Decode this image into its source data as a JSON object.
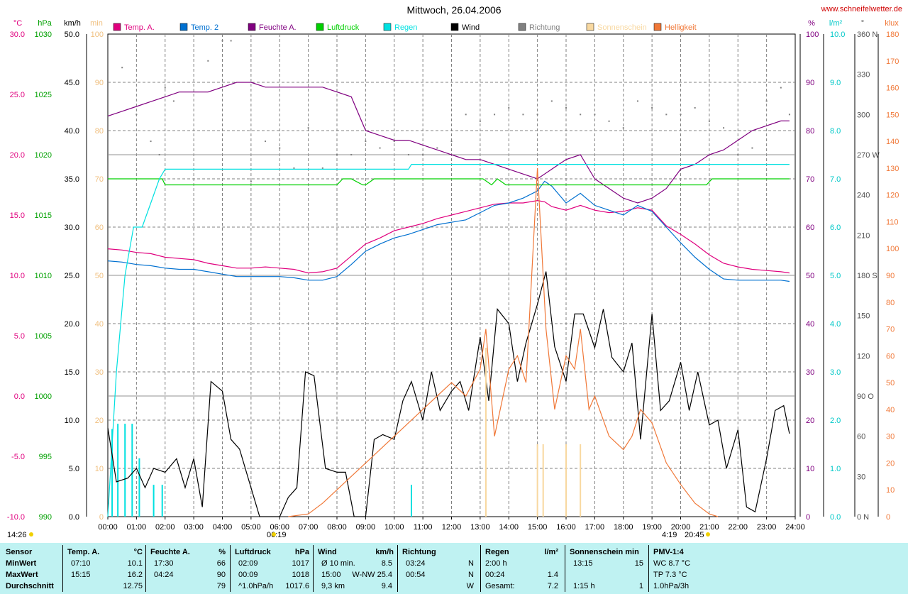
{
  "header": {
    "title": "Mittwoch, 26.04.2006",
    "site": "www.schneifelwetter.de"
  },
  "axis_units": {
    "temp": "°C",
    "pressure": "hPa",
    "speed": "km/h",
    "minutes": "min",
    "humidity": "%",
    "rain": "l/m²",
    "direction": "°",
    "brightness": "klux"
  },
  "legend": [
    {
      "label": "Temp. A.",
      "color": "#e0007e"
    },
    {
      "label": "Temp. 2",
      "color": "#0070d0"
    },
    {
      "label": "Feuchte A.",
      "color": "#800080"
    },
    {
      "label": "Luftdruck",
      "color": "#00d000"
    },
    {
      "label": "Regen",
      "color": "#00e0e0"
    },
    {
      "label": "Wind",
      "color": "#000000"
    },
    {
      "label": "Richtung",
      "color": "#808080"
    },
    {
      "label": "Sonnenschein",
      "color": "#f8d8a0"
    },
    {
      "label": "Helligkeit",
      "color": "#f07838"
    }
  ],
  "axes": {
    "temp_ticks": [
      "30.0",
      "25.0",
      "20.0",
      "15.0",
      "10.0",
      "5.0",
      "0.0",
      "-5.0",
      "-10.0"
    ],
    "pressure_ticks": [
      "1030",
      "1025",
      "1020",
      "1015",
      "1010",
      "1005",
      "1000",
      "995",
      "990"
    ],
    "speed_ticks": [
      "50.0",
      "45.0",
      "40.0",
      "35.0",
      "30.0",
      "25.0",
      "20.0",
      "15.0",
      "10.0",
      "5.0",
      "0.0"
    ],
    "minutes_ticks": [
      "100",
      "90",
      "80",
      "70",
      "60",
      "50",
      "40",
      "30",
      "20",
      "10",
      "0"
    ],
    "humidity_ticks": [
      "100",
      "90",
      "80",
      "70",
      "60",
      "50",
      "40",
      "30",
      "20",
      "10",
      "0"
    ],
    "rain_ticks": [
      "10.0",
      "9.0",
      "8.0",
      "7.0",
      "6.0",
      "5.0",
      "4.0",
      "3.0",
      "2.0",
      "1.0",
      "0.0"
    ],
    "direction_ticks": [
      "360 N",
      "330",
      "300",
      "270 W",
      "240",
      "210",
      "180 S",
      "150",
      "120",
      "90 O",
      "60",
      "30",
      "0 N"
    ],
    "brightness_ticks": [
      "180",
      "170",
      "160",
      "150",
      "140",
      "130",
      "120",
      "110",
      "100",
      "90",
      "80",
      "70",
      "60",
      "50",
      "40",
      "30",
      "20",
      "10",
      "0"
    ],
    "time_ticks": [
      "00:00",
      "01:00",
      "02:00",
      "03:00",
      "04:00",
      "05:00",
      "06:00",
      "07:00",
      "08:00",
      "09:00",
      "10:00",
      "11:00",
      "12:00",
      "13:00",
      "14:00",
      "15:00",
      "16:00",
      "17:00",
      "18:00",
      "19:00",
      "20:00",
      "21:00",
      "22:00",
      "23:00",
      "24:00"
    ]
  },
  "sun": {
    "extra_left": "14:26",
    "sunrise": "06:19",
    "sunset": "20:45",
    "moon": "4:19"
  },
  "chart_data": {
    "type": "line",
    "title": "Mittwoch, 26.04.2006",
    "x_unit": "time (h)",
    "x_range": [
      0,
      24
    ],
    "grid": true,
    "legend_position": "top",
    "series": [
      {
        "name": "Temp. A.",
        "unit": "°C",
        "color": "#e0007e",
        "x": [
          0,
          0.5,
          1,
          1.5,
          2,
          2.5,
          3,
          3.5,
          4,
          4.5,
          5,
          5.5,
          6,
          6.5,
          7,
          7.5,
          8,
          8.5,
          9,
          9.5,
          10,
          10.5,
          11,
          11.5,
          12,
          12.5,
          13,
          13.5,
          14,
          14.5,
          15,
          15.25,
          15.5,
          16,
          16.5,
          17,
          17.5,
          18,
          18.5,
          19,
          19.5,
          20,
          20.5,
          21,
          21.5,
          22,
          22.5,
          23,
          23.5,
          23.8
        ],
        "y": [
          12.2,
          12.1,
          11.9,
          11.8,
          11.5,
          11.4,
          11.3,
          11.0,
          10.8,
          10.6,
          10.6,
          10.7,
          10.6,
          10.5,
          10.2,
          10.3,
          10.6,
          11.6,
          12.6,
          13.1,
          13.7,
          14.0,
          14.3,
          14.7,
          15.0,
          15.3,
          15.6,
          15.9,
          16.0,
          16.0,
          16.2,
          16.1,
          15.7,
          15.4,
          15.8,
          15.4,
          15.2,
          15.3,
          15.6,
          15.4,
          14.1,
          13.4,
          12.6,
          11.7,
          11.0,
          10.7,
          10.5,
          10.4,
          10.3,
          10.2
        ]
      },
      {
        "name": "Temp. 2",
        "unit": "°C",
        "color": "#0070d0",
        "x": [
          0,
          0.5,
          1,
          1.5,
          2,
          2.5,
          3,
          3.5,
          4,
          4.5,
          5,
          5.5,
          6,
          6.5,
          7,
          7.5,
          8,
          8.5,
          9,
          9.5,
          10,
          10.5,
          11,
          11.5,
          12,
          12.5,
          13,
          13.5,
          14,
          14.5,
          15,
          15.25,
          15.5,
          16,
          16.5,
          17,
          17.5,
          18,
          18.5,
          19,
          19.5,
          20,
          20.5,
          21,
          21.5,
          22,
          22.5,
          23,
          23.5,
          23.8
        ],
        "y": [
          11.2,
          11.1,
          10.9,
          10.8,
          10.6,
          10.5,
          10.5,
          10.3,
          10.1,
          9.9,
          9.9,
          9.9,
          9.9,
          9.8,
          9.6,
          9.6,
          9.9,
          10.9,
          12.0,
          12.6,
          13.1,
          13.4,
          13.8,
          14.2,
          14.4,
          14.6,
          15.2,
          15.8,
          16.0,
          16.4,
          17.0,
          17.8,
          17.4,
          16.0,
          16.8,
          15.8,
          15.4,
          15.0,
          15.8,
          15.3,
          14.0,
          12.7,
          11.5,
          10.5,
          9.7,
          9.6,
          9.6,
          9.6,
          9.6,
          9.5
        ]
      },
      {
        "name": "Feuchte A.",
        "unit": "%",
        "color": "#800080",
        "x": [
          0,
          0.5,
          1,
          1.5,
          2,
          2.5,
          3,
          3.5,
          4,
          4.5,
          5,
          5.5,
          6,
          6.5,
          7,
          7.5,
          8,
          8.5,
          9,
          9.5,
          10,
          10.5,
          11,
          11.5,
          12,
          12.5,
          13,
          13.5,
          14,
          14.5,
          15,
          15.5,
          16,
          16.5,
          17,
          17.5,
          18,
          18.5,
          19,
          19.5,
          20,
          20.5,
          21,
          21.5,
          22,
          22.5,
          23,
          23.5,
          23.8
        ],
        "y": [
          83,
          84,
          85,
          86,
          87,
          88,
          88,
          88,
          89,
          90,
          90,
          89,
          89,
          89,
          89,
          89,
          88,
          87,
          80,
          79,
          78,
          78,
          77,
          76,
          75,
          74,
          74,
          73,
          72,
          71,
          70,
          72,
          74,
          75,
          70,
          68,
          66,
          65,
          66,
          68,
          72,
          73,
          75,
          76,
          78,
          80,
          81,
          82,
          82
        ]
      },
      {
        "name": "Luftdruck",
        "unit": "hPa",
        "color": "#00d000",
        "x": [
          0,
          1,
          1.9,
          2,
          4,
          7,
          8,
          8.2,
          8.5,
          8.9,
          9.0,
          9.3,
          10,
          12,
          13.1,
          13.4,
          13.6,
          13.9,
          14,
          15,
          16,
          17,
          18,
          19,
          20,
          20.9,
          21.1,
          22,
          23,
          23.8
        ],
        "y": [
          1018,
          1018,
          1018,
          1017.5,
          1017.5,
          1017.5,
          1017.5,
          1018,
          1018,
          1017.5,
          1017.5,
          1018,
          1018,
          1018,
          1018,
          1017.5,
          1018,
          1017.5,
          1017.5,
          1017.5,
          1017.5,
          1017.5,
          1017.5,
          1017.5,
          1017.5,
          1017.5,
          1018,
          1018,
          1018,
          1018
        ]
      },
      {
        "name": "Regen",
        "unit": "l/m²",
        "color": "#00e0e0",
        "x": [
          0,
          0.3,
          0.6,
          0.9,
          1.2,
          1.5,
          1.8,
          2.0,
          2.5,
          4,
          6,
          8,
          10,
          10.5,
          10.6,
          12,
          14,
          16,
          18,
          20,
          22,
          23.8
        ],
        "y": [
          0,
          3.0,
          5.0,
          6.0,
          6.0,
          6.5,
          7.0,
          7.2,
          7.2,
          7.2,
          7.2,
          7.2,
          7.2,
          7.2,
          7.3,
          7.3,
          7.3,
          7.3,
          7.3,
          7.3,
          7.3,
          7.3
        ]
      },
      {
        "name": "Wind",
        "unit": "km/h",
        "color": "#000000",
        "x": [
          0,
          0.3,
          0.7,
          1.0,
          1.3,
          1.6,
          2.0,
          2.4,
          2.7,
          3.0,
          3.3,
          3.6,
          4.0,
          4.3,
          4.6,
          4.9,
          5.3,
          5.6,
          6.0,
          6.3,
          6.6,
          6.9,
          7.2,
          7.6,
          8.0,
          8.3,
          8.6,
          9.0,
          9.3,
          9.6,
          10.0,
          10.3,
          10.6,
          11.0,
          11.3,
          11.6,
          12.0,
          12.3,
          12.6,
          13.0,
          13.3,
          13.6,
          14.0,
          14.3,
          14.6,
          15.0,
          15.3,
          15.6,
          16.0,
          16.3,
          16.6,
          17.0,
          17.3,
          17.6,
          18.0,
          18.3,
          18.6,
          19.0,
          19.3,
          19.6,
          20.0,
          20.3,
          20.6,
          21.0,
          21.3,
          21.6,
          22.0,
          22.3,
          22.6,
          23.0,
          23.3,
          23.6,
          23.8
        ],
        "y": [
          9.2,
          3.6,
          4.0,
          5.0,
          3.0,
          5.0,
          4.6,
          6.0,
          3.0,
          6.0,
          1.0,
          14.0,
          13.0,
          8.0,
          7.0,
          4.0,
          0,
          0,
          0,
          2.0,
          3.0,
          15.0,
          14.6,
          5.0,
          4.6,
          4.6,
          0,
          0,
          8.0,
          8.5,
          8.0,
          12.0,
          14.0,
          10.0,
          15.0,
          11.0,
          13.0,
          14.0,
          11.0,
          18.6,
          12.0,
          21.5,
          20.0,
          14.0,
          18.0,
          22.0,
          25.4,
          17.6,
          14.0,
          21.0,
          21.0,
          17.5,
          21.5,
          16.5,
          15.0,
          18.0,
          8.0,
          21.0,
          11.0,
          12.0,
          16.0,
          11.0,
          15.0,
          9.5,
          10.0,
          5.0,
          9.0,
          1.0,
          0.5,
          6.0,
          11.0,
          11.5,
          8.6
        ]
      },
      {
        "name": "Helligkeit",
        "unit": "klux",
        "color": "#f07838",
        "x": [
          6.3,
          7.0,
          7.5,
          8.0,
          8.5,
          9.0,
          9.5,
          10.0,
          10.5,
          11.0,
          11.5,
          12.0,
          12.5,
          13.0,
          13.2,
          13.5,
          14.0,
          14.3,
          14.6,
          15.0,
          15.3,
          15.6,
          16.0,
          16.3,
          16.5,
          16.8,
          17.0,
          17.5,
          18.0,
          18.3,
          18.6,
          19.0,
          19.5,
          20.0,
          20.5,
          21.0,
          21.3
        ],
        "y": [
          0,
          1,
          5,
          10,
          15,
          20,
          25,
          30,
          35,
          40,
          45,
          50,
          45,
          55,
          70,
          30,
          55,
          60,
          50,
          130,
          70,
          40,
          60,
          55,
          70,
          40,
          45,
          30,
          25,
          30,
          40,
          35,
          20,
          12,
          5,
          1,
          0
        ]
      },
      {
        "name": "Richtung",
        "unit": "°",
        "color": "#808080",
        "x": [
          0.5,
          1.0,
          1.5,
          1.8,
          2.0,
          2.3,
          3.5,
          4.0,
          4.3,
          5.0,
          5.5,
          6.0,
          6.5,
          7.0,
          7.5,
          8.0,
          8.5,
          9.0,
          9.5,
          10.0,
          10.5,
          11.0,
          11.5,
          12.0,
          12.5,
          13.0,
          13.5,
          14.0,
          14.5,
          15.0,
          15.5,
          16.0,
          16.5,
          17.0,
          17.5,
          18.0,
          18.5,
          19.0,
          19.5,
          20.0,
          20.5,
          21.0,
          21.5,
          22.0,
          22.5,
          23.0,
          23.5,
          23.8
        ],
        "y": [
          335,
          300,
          280,
          270,
          320,
          310,
          340,
          355,
          355,
          250,
          280,
          275,
          260,
          290,
          260,
          270,
          270,
          280,
          275,
          280,
          270,
          270,
          275,
          280,
          300,
          295,
          300,
          305,
          300,
          300,
          310,
          305,
          300,
          300,
          295,
          290,
          310,
          305,
          300,
          300,
          305,
          295,
          290,
          270,
          275,
          310,
          320,
          300
        ]
      },
      {
        "name": "Sonnenschein",
        "unit": "min",
        "color": "#f8d8a0",
        "x": [
          13.2,
          15.0,
          15.2,
          16.0,
          16.5
        ],
        "y": [
          35,
          15,
          15,
          15,
          15
        ]
      }
    ]
  },
  "stats": {
    "headers": [
      {
        "name": "Sensor",
        "unit": ""
      },
      {
        "name": "Temp. A.",
        "unit": "°C"
      },
      {
        "name": "Feuchte A.",
        "unit": "%"
      },
      {
        "name": "Luftdruck",
        "unit": "hPa"
      },
      {
        "name": "Wind",
        "unit": "km/h"
      },
      {
        "name": "Richtung",
        "unit": ""
      },
      {
        "name": "Regen",
        "unit": "l/m²"
      },
      {
        "name": "Sonnenschein min",
        "unit": ""
      },
      {
        "name": "PMV-1:4",
        "unit": ""
      }
    ],
    "rows": [
      {
        "label": "MinWert",
        "cells": [
          "07:10",
          "10.1",
          "17:30",
          "66",
          "02:09",
          "1017",
          "Ø 10 min.",
          "8.5",
          "03:24",
          "N",
          "2:00 h",
          "",
          "13:15",
          "15",
          "WC 8.7 °C"
        ]
      },
      {
        "label": "MaxWert",
        "cells": [
          "15:15",
          "16.2",
          "04:24",
          "90",
          "00:09",
          "1018",
          "15:00",
          "W-NW 25.4",
          "00:54",
          "N",
          "00:24",
          "1.4",
          "",
          "",
          "TP 7.3 °C"
        ]
      },
      {
        "label": "Durchschnitt",
        "cells": [
          "",
          "12.75",
          "",
          "79",
          "^1.0hPa/h",
          "1017.6",
          "9,3 km",
          "9.4",
          "",
          "W",
          "Gesamt:",
          "7.2",
          "1:15 h",
          "1",
          "1.0hPa/3h"
        ]
      }
    ]
  }
}
